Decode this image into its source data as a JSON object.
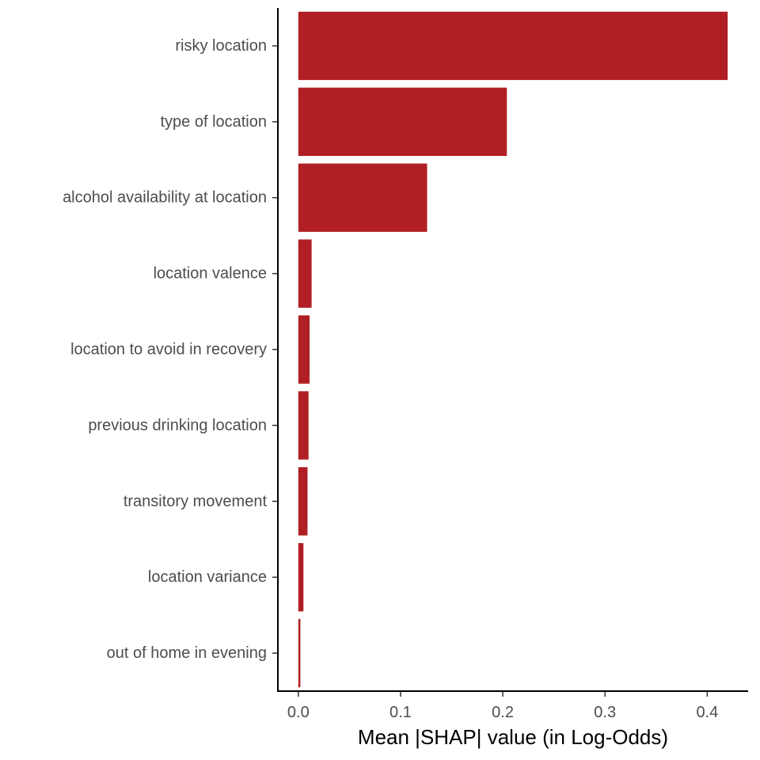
{
  "chart_data": {
    "type": "bar",
    "orientation": "horizontal",
    "categories": [
      "risky location",
      "type of location",
      "alcohol availability at location",
      "location valence",
      "location to avoid in recovery",
      "previous drinking location",
      "transitory movement",
      "location variance",
      "out of home in evening"
    ],
    "values": [
      0.42,
      0.204,
      0.126,
      0.013,
      0.011,
      0.01,
      0.009,
      0.005,
      0.002
    ],
    "xlabel": "Mean |SHAP| value (in Log-Odds)",
    "ylabel": "",
    "xlim": [
      -0.02,
      0.44
    ],
    "xticks": [
      0.0,
      0.1,
      0.2,
      0.3,
      0.4
    ],
    "xtick_labels": [
      "0.0",
      "0.1",
      "0.2",
      "0.3",
      "0.4"
    ],
    "bar_color": "#B01F24",
    "grid": false,
    "legend": "none"
  }
}
